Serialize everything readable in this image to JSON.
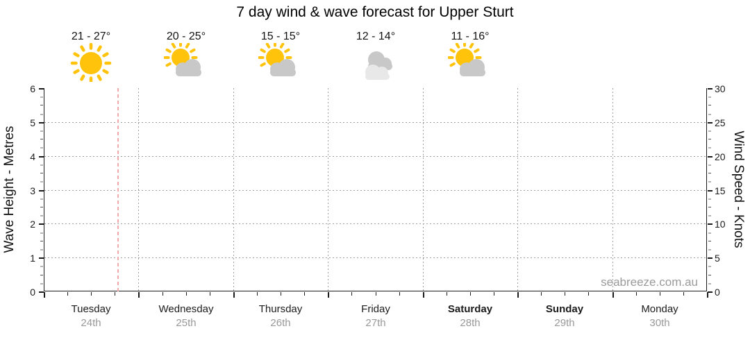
{
  "title": "7 day wind & wave forecast for Upper Sturt",
  "watermark": "seabreeze.com.au",
  "colors": {
    "sun": "#FFC30B",
    "cloud": "#C8C8C8",
    "cloud_light": "#E8E8E8",
    "now_line": "#F2A9A9",
    "grid": "#9E9E9E",
    "axis": "#1A1A1A",
    "date_text": "#989898"
  },
  "chart_data": {
    "type": "line",
    "title": "7 day wind & wave forecast for Upper Sturt",
    "grid": true,
    "legend_position": "none",
    "series": [],
    "y_left": {
      "label": "Wave Height - Metres",
      "min": 0,
      "max": 6,
      "ticks": [
        0,
        1,
        2,
        3,
        4,
        5,
        6
      ],
      "minor_step": 0.25,
      "gridlines": [
        1,
        2,
        3,
        4,
        5
      ]
    },
    "y_right": {
      "label": "Wind Speed - Knots",
      "min": 0,
      "max": 30,
      "ticks": [
        0,
        5,
        10,
        15,
        20,
        25,
        30
      ],
      "minor_step": 1.25
    },
    "x_axis": {
      "days": [
        {
          "name": "Tuesday",
          "date": "24th",
          "weekend": false
        },
        {
          "name": "Wednesday",
          "date": "25th",
          "weekend": false
        },
        {
          "name": "Thursday",
          "date": "26th",
          "weekend": false
        },
        {
          "name": "Friday",
          "date": "27th",
          "weekend": false
        },
        {
          "name": "Saturday",
          "date": "28th",
          "weekend": true
        },
        {
          "name": "Sunday",
          "date": "29th",
          "weekend": true
        },
        {
          "name": "Monday",
          "date": "30th",
          "weekend": false
        }
      ],
      "minor_ticks_per_day": 4,
      "day_boundary_gridlines": true
    },
    "forecast_icons": [
      {
        "day": "Tuesday",
        "temp_range": "21 - 27°",
        "icon": "sunny-icon"
      },
      {
        "day": "Wednesday",
        "temp_range": "20 - 25°",
        "icon": "partly-cloudy-icon"
      },
      {
        "day": "Thursday",
        "temp_range": "15 - 15°",
        "icon": "partly-cloudy-icon"
      },
      {
        "day": "Friday",
        "temp_range": "12 - 14°",
        "icon": "cloudy-icon"
      },
      {
        "day": "Saturday",
        "temp_range": "11 - 16°",
        "icon": "partly-cloudy-icon"
      }
    ],
    "now_marker": {
      "day": "Tuesday",
      "day_fraction": 0.78
    }
  }
}
